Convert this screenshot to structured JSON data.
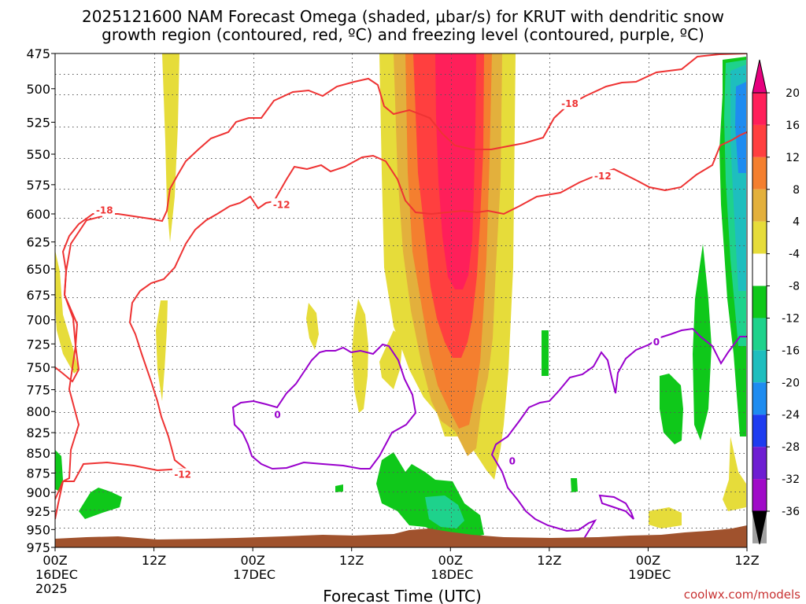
{
  "chart_data": {
    "type": "time-height",
    "title_line1": "2025121600 NAM Forecast Omega (shaded, μbar/s) for KRUT with dendritic snow",
    "title_line2": "growth region (contoured, red, ºC) and freezing level (contoured, purple, ºC)",
    "xlabel": "Forecast Time (UTC)",
    "credit": "coolwx.com/models",
    "x_range_hours": [
      0,
      84
    ],
    "y_range_mb": [
      975,
      475
    ],
    "y_ticks": [
      "475",
      "500",
      "525",
      "550",
      "575",
      "600",
      "625",
      "650",
      "675",
      "700",
      "725",
      "750",
      "775",
      "800",
      "825",
      "850",
      "875",
      "900",
      "925",
      "950",
      "975"
    ],
    "x_ticks": [
      {
        "hour": 0,
        "time": "00Z",
        "date": "16DEC",
        "year": "2025"
      },
      {
        "hour": 12,
        "time": "12Z",
        "date": "",
        "year": ""
      },
      {
        "hour": 24,
        "time": "00Z",
        "date": "17DEC",
        "year": ""
      },
      {
        "hour": 36,
        "time": "12Z",
        "date": "",
        "year": ""
      },
      {
        "hour": 48,
        "time": "00Z",
        "date": "18DEC",
        "year": ""
      },
      {
        "hour": 60,
        "time": "12Z",
        "date": "",
        "year": ""
      },
      {
        "hour": 72,
        "time": "00Z",
        "date": "19DEC",
        "year": ""
      },
      {
        "hour": 84,
        "time": "12Z",
        "date": "",
        "year": ""
      }
    ],
    "colorbar": {
      "tick_labels": [
        "20",
        "16",
        "12",
        "8",
        "4",
        "-4",
        "-8",
        "-12",
        "-16",
        "-20",
        "-24",
        "-28",
        "-32",
        "-36"
      ],
      "bins": [
        {
          "range": "16 to 20",
          "color": "#ff1f5a"
        },
        {
          "range": "12 to 16",
          "color": "#ff3f3f"
        },
        {
          "range": "8 to 12",
          "color": "#f47f2f"
        },
        {
          "range": "4 to 8",
          "color": "#e3b03c"
        },
        {
          "range": "0 to 4",
          "color": "#e6dc3a"
        },
        {
          "range": "-4 to 4",
          "color": "#ffffff"
        },
        {
          "range": "-8 to -4",
          "color": "#0fc81a"
        },
        {
          "range": "-12 to -8",
          "color": "#1ed28c"
        },
        {
          "range": "-16 to -12",
          "color": "#1ebebe"
        },
        {
          "range": "-20 to -16",
          "color": "#1e8cf0"
        },
        {
          "range": "-24 to -20",
          "color": "#1e3cf0"
        },
        {
          "range": "-28 to -24",
          "color": "#6e1ed2"
        },
        {
          "range": "-32 to -28",
          "color": "#a00ac8"
        },
        {
          "range": "-36 to -32",
          "color": "#a0a0a0"
        }
      ],
      "top_arrow_color": "#e6007e",
      "bottom_arrow_color": "#000000"
    },
    "contour_labels": [
      {
        "text": "-18",
        "color": "#ee3333",
        "hour": 6,
        "mb": 597
      },
      {
        "text": "-12",
        "color": "#ee3333",
        "hour": 27.5,
        "mb": 592
      },
      {
        "text": "-12",
        "color": "#ee3333",
        "hour": 15.5,
        "mb": 877
      },
      {
        "text": "-18",
        "color": "#ee3333",
        "hour": 62.5,
        "mb": 511
      },
      {
        "text": "-12",
        "color": "#ee3333",
        "hour": 66.5,
        "mb": 568
      },
      {
        "text": "0",
        "color": "#9900cc",
        "hour": 27,
        "mb": 804
      },
      {
        "text": "0",
        "color": "#9900cc",
        "hour": 55.5,
        "mb": 860
      },
      {
        "text": "0",
        "color": "#9900cc",
        "hour": 73,
        "mb": 723
      }
    ],
    "terrain_color": "#a0522d",
    "surface_pressure_mb": 967
  }
}
